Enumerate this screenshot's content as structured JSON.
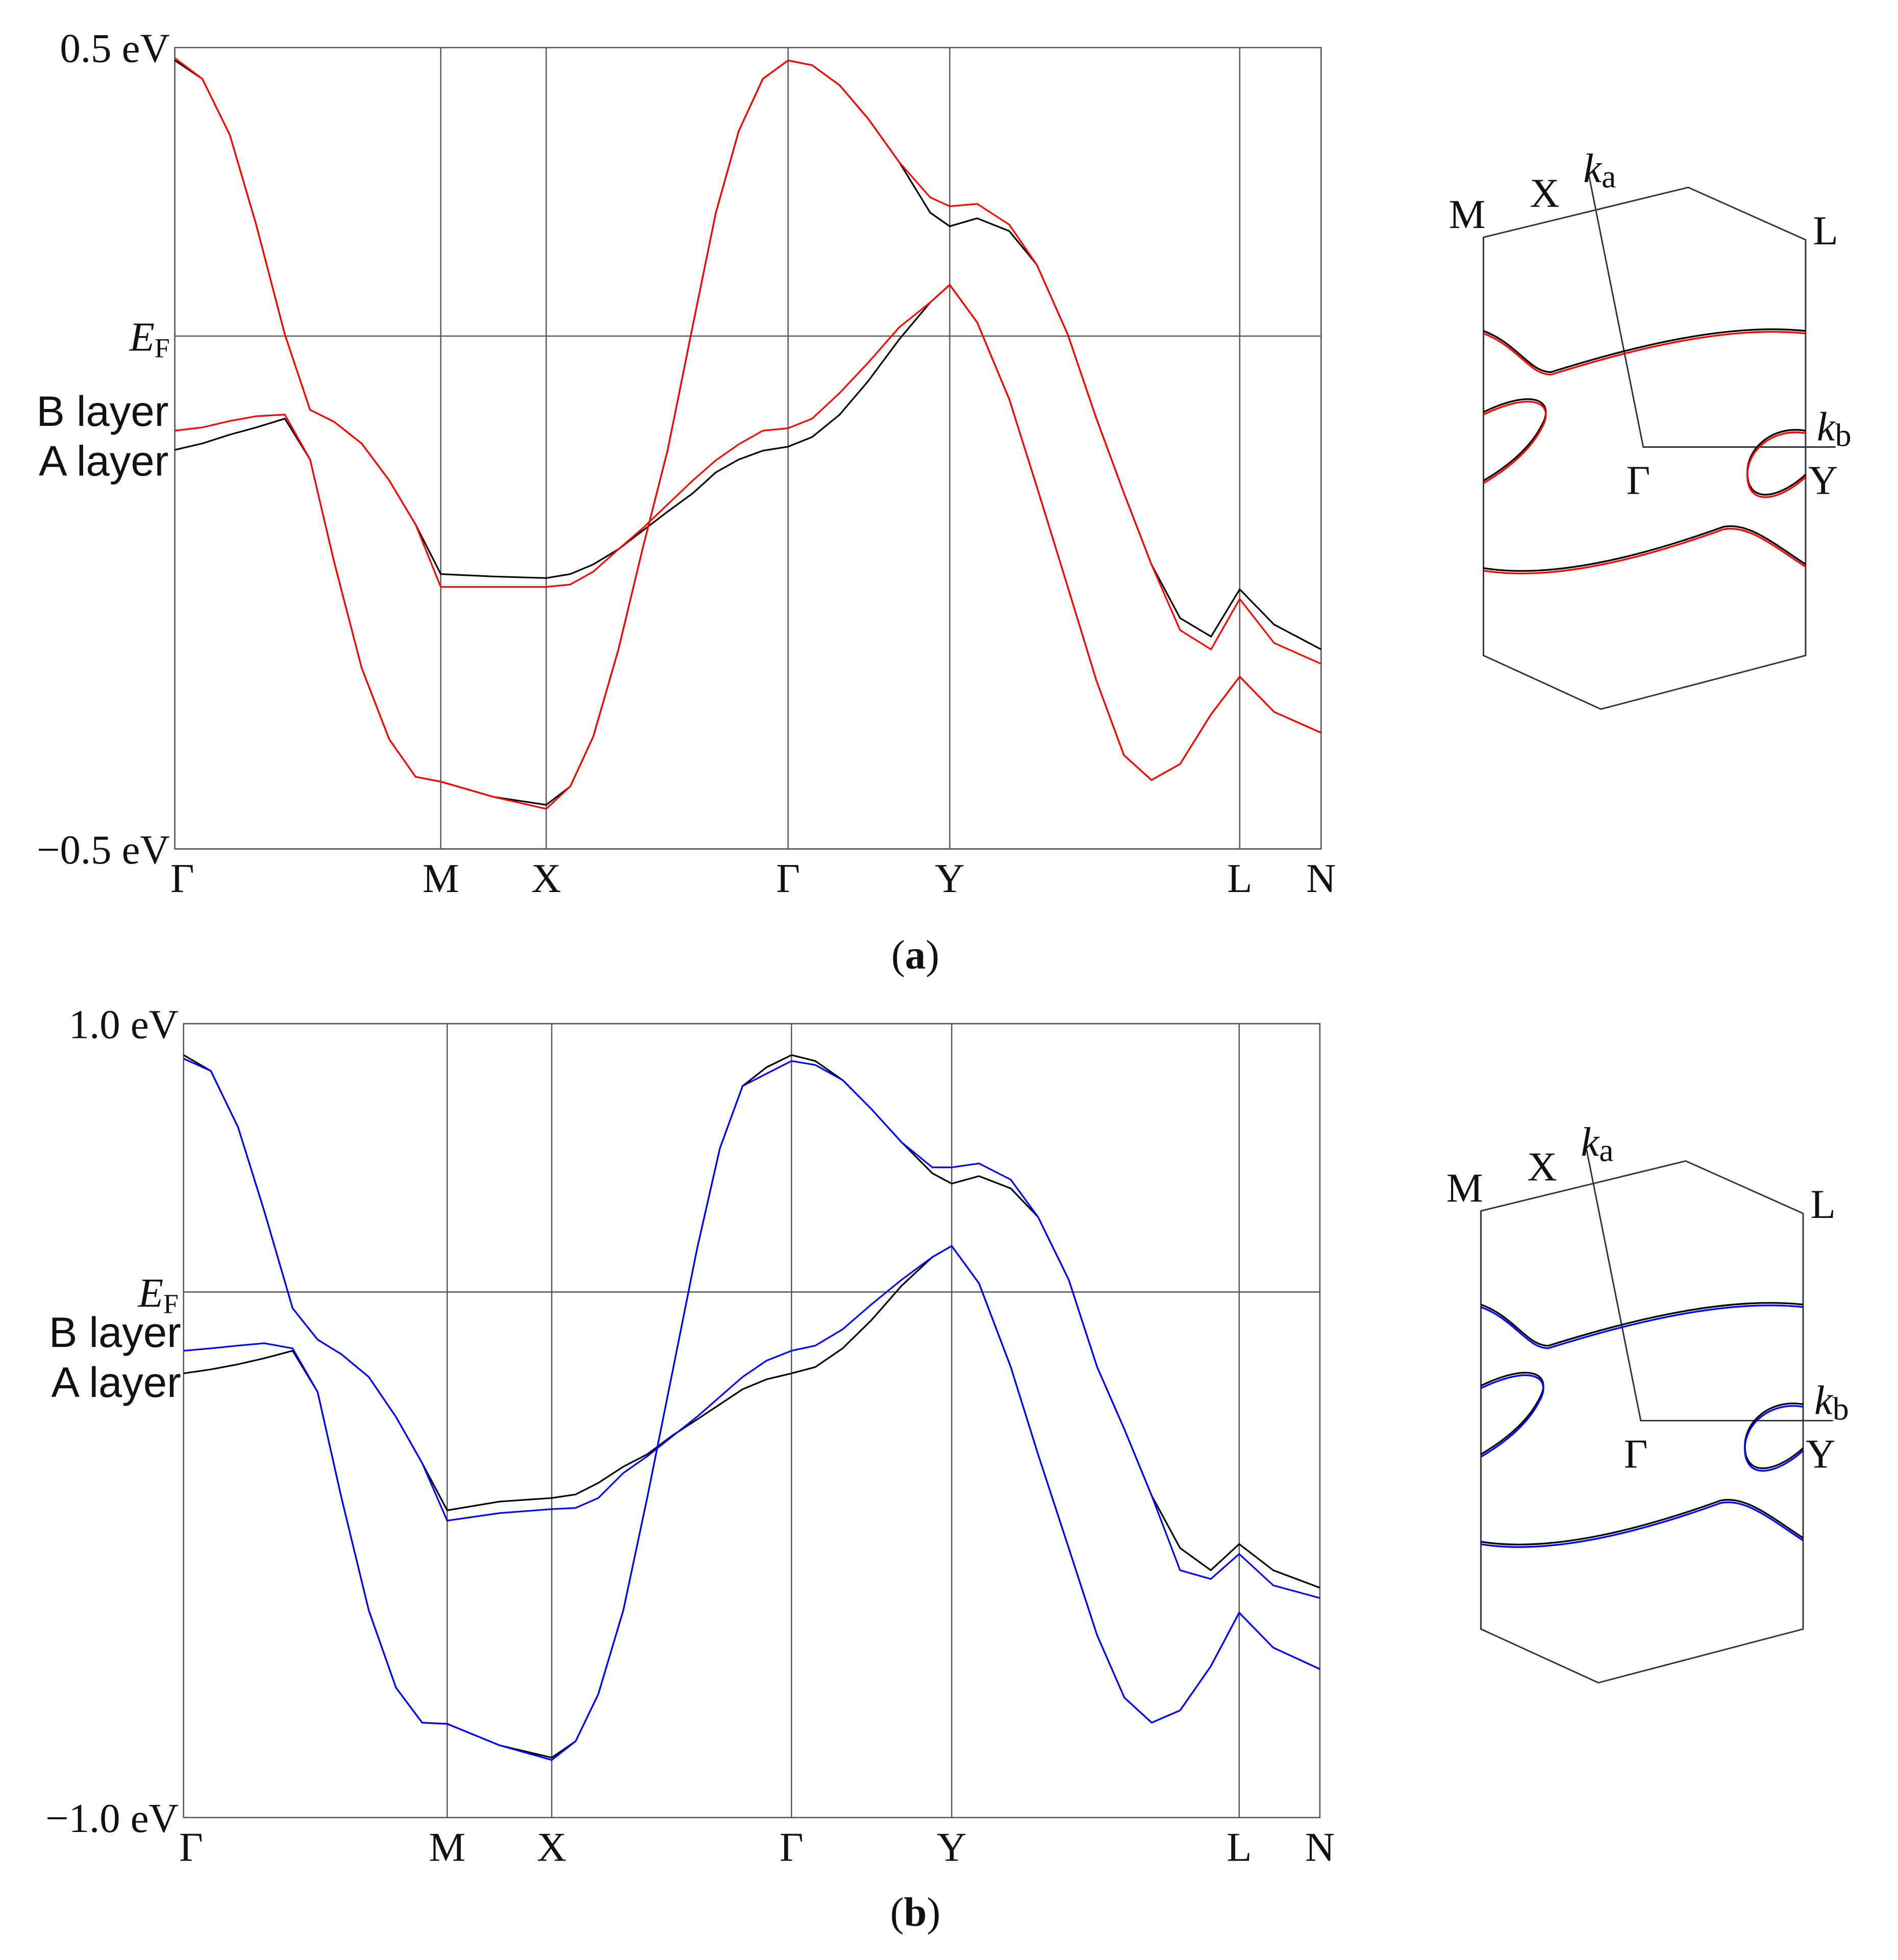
{
  "chart_data": [
    {
      "type": "line",
      "caption": "(a)",
      "grid": true,
      "x": [
        0,
        0.024,
        0.048,
        0.071,
        0.096,
        0.118,
        0.139,
        0.163,
        0.187,
        0.21,
        0.232,
        0.278,
        0.324,
        0.345,
        0.365,
        0.387,
        0.408,
        0.43,
        0.452,
        0.472,
        0.492,
        0.513,
        0.535,
        0.556,
        0.58,
        0.605,
        0.632,
        0.659,
        0.676,
        0.7,
        0.728,
        0.752,
        0.779,
        0.804,
        0.828,
        0.852,
        0.877,
        0.904,
        0.929,
        0.959,
        1
      ],
      "xlim": [
        0,
        1
      ],
      "xticks": [
        {
          "value": 0,
          "label": "Γ"
        },
        {
          "value": 0.232,
          "label": "M"
        },
        {
          "value": 0.324,
          "label": "X"
        },
        {
          "value": 0.535,
          "label": "Γ"
        },
        {
          "value": 0.676,
          "label": "Y"
        },
        {
          "value": 0.929,
          "label": "L"
        },
        {
          "value": 1,
          "label": "N"
        }
      ],
      "ylim": [
        -0.5,
        0.5
      ],
      "yticks": [
        {
          "value": -0.5,
          "label": "−0.5 eV"
        },
        {
          "value": 0.14,
          "label": "EF"
        },
        {
          "value": 0.5,
          "label": "0.5 eV"
        }
      ],
      "series": [
        {
          "name": "B layer",
          "color": "#ff0000",
          "bands": [
            [
              0.487,
              0.461,
              0.391,
              0.279,
              0.142,
              0.048,
              0.033,
              0.006,
              -0.04,
              -0.095,
              -0.173,
              -0.173,
              -0.173,
              -0.17,
              -0.154,
              -0.126,
              -0.1,
              -0.07,
              -0.04,
              -0.015,
              0.005,
              0.022,
              0.025,
              0.037,
              0.069,
              0.107,
              0.151,
              0.182,
              0.204,
              0.157,
              0.061,
              -0.048,
              -0.173,
              -0.29,
              -0.383,
              -0.414,
              -0.394,
              -0.332,
              -0.285,
              -0.329,
              -0.355
            ],
            [
              0.022,
              0.026,
              0.034,
              0.04,
              0.042,
              -0.014,
              -0.142,
              -0.274,
              -0.363,
              -0.41,
              -0.416,
              -0.435,
              -0.45,
              -0.422,
              -0.36,
              -0.251,
              -0.126,
              -0.002,
              0.154,
              0.294,
              0.396,
              0.461,
              0.484,
              0.478,
              0.453,
              0.411,
              0.357,
              0.313,
              0.302,
              0.305,
              0.279,
              0.229,
              0.142,
              0.037,
              -0.056,
              -0.145,
              -0.227,
              -0.251,
              -0.188,
              -0.243,
              -0.269
            ]
          ]
        },
        {
          "name": "A layer",
          "color": "#000000",
          "bands": [
            [
              0.484,
              0.461,
              0.391,
              0.279,
              0.142,
              0.048,
              0.033,
              0.006,
              -0.04,
              -0.095,
              -0.157,
              -0.16,
              -0.162,
              -0.157,
              -0.145,
              -0.126,
              -0.103,
              -0.079,
              -0.056,
              -0.03,
              -0.014,
              -0.003,
              0.002,
              0.014,
              0.042,
              0.084,
              0.136,
              0.182,
              0.204,
              0.157,
              0.061,
              -0.048,
              -0.173,
              -0.29,
              -0.383,
              -0.414,
              -0.394,
              -0.332,
              -0.285,
              -0.329,
              -0.355
            ],
            [
              -0.002,
              0.006,
              0.017,
              0.026,
              0.037,
              -0.014,
              -0.142,
              -0.274,
              -0.363,
              -0.41,
              -0.416,
              -0.435,
              -0.445,
              -0.422,
              -0.36,
              -0.251,
              -0.126,
              -0.002,
              0.154,
              0.294,
              0.396,
              0.461,
              0.484,
              0.478,
              0.453,
              0.411,
              0.357,
              0.294,
              0.277,
              0.287,
              0.271,
              0.229,
              0.142,
              0.037,
              -0.056,
              -0.145,
              -0.212,
              -0.235,
              -0.176,
              -0.22,
              -0.251
            ]
          ]
        }
      ],
      "inset": {
        "points": [
          "M",
          "X",
          "L",
          "Γ",
          "Y"
        ],
        "axes": [
          {
            "symbol": "k",
            "subscript": "a"
          },
          {
            "symbol": "k",
            "subscript": "b"
          }
        ]
      }
    },
    {
      "type": "line",
      "caption": "(b)",
      "grid": true,
      "x": [
        0,
        0.024,
        0.048,
        0.071,
        0.096,
        0.118,
        0.139,
        0.163,
        0.187,
        0.21,
        0.232,
        0.278,
        0.324,
        0.345,
        0.365,
        0.387,
        0.408,
        0.43,
        0.452,
        0.472,
        0.492,
        0.513,
        0.535,
        0.556,
        0.58,
        0.605,
        0.632,
        0.659,
        0.676,
        0.7,
        0.728,
        0.752,
        0.779,
        0.804,
        0.828,
        0.852,
        0.877,
        0.904,
        0.929,
        0.959,
        1
      ],
      "xlim": [
        0,
        1
      ],
      "xticks": [
        {
          "value": 0,
          "label": "Γ"
        },
        {
          "value": 0.232,
          "label": "M"
        },
        {
          "value": 0.324,
          "label": "X"
        },
        {
          "value": 0.535,
          "label": "Γ"
        },
        {
          "value": 0.676,
          "label": "Y"
        },
        {
          "value": 0.929,
          "label": "L"
        },
        {
          "value": 1,
          "label": "N"
        }
      ],
      "ylim": [
        -1.0,
        1.0
      ],
      "yticks": [
        {
          "value": -1.0,
          "label": "−1.0 eV"
        },
        {
          "value": 0.324,
          "label": "EF"
        },
        {
          "value": 1.0,
          "label": "1.0 eV"
        }
      ],
      "series": [
        {
          "name": "B layer",
          "color": "#0000ff",
          "bands": [
            [
              0.912,
              0.881,
              0.739,
              0.528,
              0.283,
              0.204,
              0.167,
              0.11,
              0.009,
              -0.107,
              -0.252,
              -0.233,
              -0.223,
              -0.22,
              -0.195,
              -0.132,
              -0.09,
              -0.04,
              0.01,
              0.06,
              0.11,
              0.151,
              0.176,
              0.189,
              0.23,
              0.292,
              0.355,
              0.412,
              0.44,
              0.346,
              0.135,
              -0.085,
              -0.321,
              -0.541,
              -0.698,
              -0.761,
              -0.73,
              -0.619,
              -0.484,
              -0.572,
              -0.626
            ],
            [
              0.176,
              0.182,
              0.189,
              0.195,
              0.182,
              0.072,
              -0.195,
              -0.478,
              -0.673,
              -0.761,
              -0.764,
              -0.818,
              -0.855,
              -0.808,
              -0.689,
              -0.478,
              -0.195,
              0.119,
              0.434,
              0.686,
              0.843,
              0.874,
              0.906,
              0.896,
              0.858,
              0.786,
              0.701,
              0.638,
              0.638,
              0.648,
              0.607,
              0.513,
              0.355,
              0.135,
              -0.022,
              -0.189,
              -0.377,
              -0.399,
              -0.336,
              -0.415,
              -0.447
            ]
          ]
        },
        {
          "name": "A layer",
          "color": "#000000",
          "bands": [
            [
              0.921,
              0.881,
              0.739,
              0.528,
              0.283,
              0.204,
              0.167,
              0.11,
              0.009,
              -0.107,
              -0.226,
              -0.204,
              -0.195,
              -0.186,
              -0.157,
              -0.116,
              -0.085,
              -0.038,
              0.003,
              0.041,
              0.079,
              0.104,
              0.119,
              0.135,
              0.182,
              0.252,
              0.34,
              0.412,
              0.44,
              0.346,
              0.135,
              -0.085,
              -0.321,
              -0.541,
              -0.698,
              -0.761,
              -0.73,
              -0.619,
              -0.484,
              -0.572,
              -0.626
            ],
            [
              0.119,
              0.129,
              0.142,
              0.157,
              0.176,
              0.072,
              -0.195,
              -0.478,
              -0.673,
              -0.761,
              -0.764,
              -0.818,
              -0.849,
              -0.808,
              -0.689,
              -0.478,
              -0.195,
              0.119,
              0.434,
              0.686,
              0.843,
              0.89,
              0.921,
              0.906,
              0.858,
              0.786,
              0.701,
              0.623,
              0.597,
              0.616,
              0.585,
              0.513,
              0.355,
              0.135,
              -0.022,
              -0.189,
              -0.321,
              -0.377,
              -0.311,
              -0.377,
              -0.421
            ]
          ]
        }
      ],
      "inset": {
        "points": [
          "M",
          "X",
          "L",
          "Γ",
          "Y"
        ],
        "axes": [
          {
            "symbol": "k",
            "subscript": "a"
          },
          {
            "symbol": "k",
            "subscript": "b"
          }
        ]
      }
    }
  ]
}
